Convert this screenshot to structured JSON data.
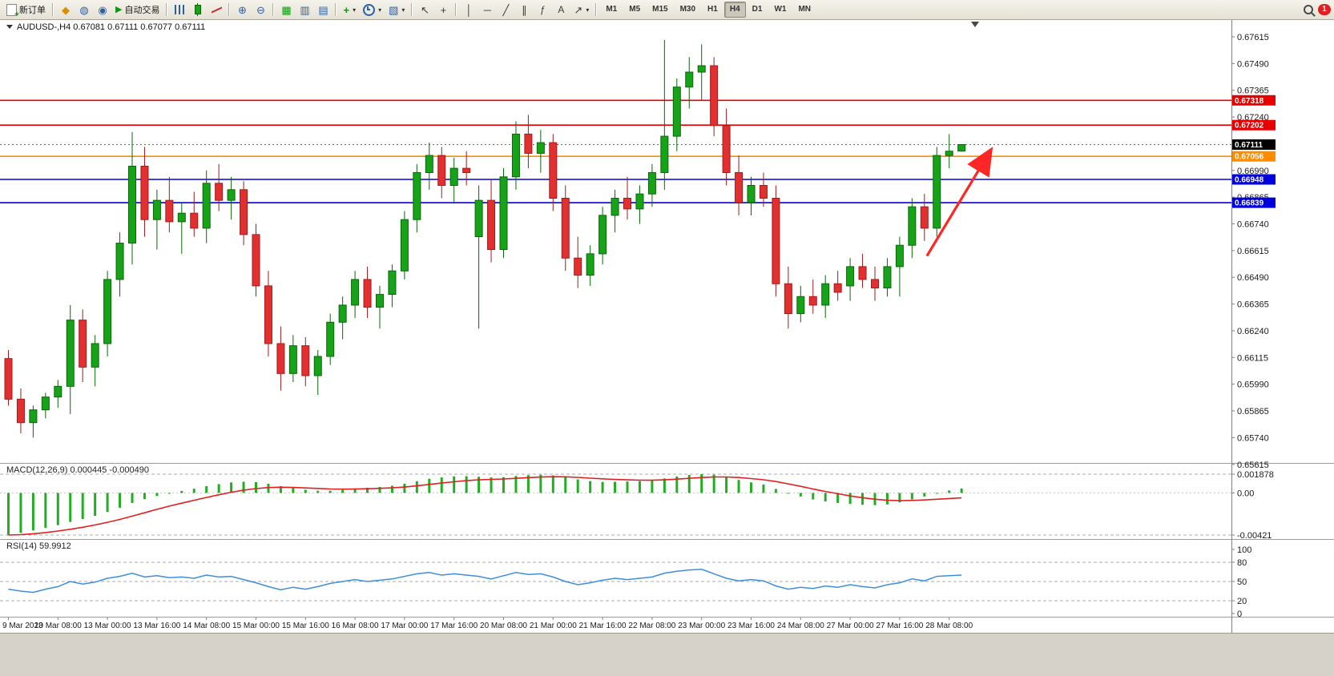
{
  "app": {
    "badge_count": "1"
  },
  "toolbar": {
    "new_order_label": "新订单",
    "auto_trading_label": "自动交易",
    "timeframes": [
      "M1",
      "M5",
      "M15",
      "M30",
      "H1",
      "H4",
      "D1",
      "W1",
      "MN"
    ],
    "active_timeframe": "H4"
  },
  "chart_header": {
    "symbol_period": "AUDUSD-,H4",
    "ohlc": "0.67081 0.67111 0.67077 0.67111"
  },
  "price_axis": {
    "labels": [
      "0.67615",
      "0.67490",
      "0.67365",
      "0.67240",
      "0.67115",
      "0.66990",
      "0.66865",
      "0.66740",
      "0.66615",
      "0.66490",
      "0.66365",
      "0.66240",
      "0.66115",
      "0.65990",
      "0.65865",
      "0.65740",
      "0.65615"
    ],
    "top_price": 0.67615,
    "step": 0.00125
  },
  "time_axis": {
    "labels": [
      "9 Mar 2023",
      "10 Mar 08:00",
      "13 Mar 00:00",
      "13 Mar 16:00",
      "14 Mar 08:00",
      "15 Mar 00:00",
      "15 Mar 16:00",
      "16 Mar 08:00",
      "17 Mar 00:00",
      "17 Mar 16:00",
      "20 Mar 08:00",
      "21 Mar 00:00",
      "21 Mar 16:00",
      "22 Mar 08:00",
      "23 Mar 00:00",
      "23 Mar 16:00",
      "24 Mar 08:00",
      "27 Mar 00:00",
      "27 Mar 16:00",
      "28 Mar 08:00"
    ],
    "candle_indices": [
      0,
      4,
      8,
      12,
      16,
      20,
      24,
      28,
      32,
      36,
      40,
      44,
      48,
      52,
      56,
      60,
      64,
      68,
      72,
      76
    ]
  },
  "levels": [
    {
      "price": 0.67318,
      "label": "0.67318",
      "color": "#E60000"
    },
    {
      "price": 0.67202,
      "label": "0.67202",
      "color": "#E60000"
    },
    {
      "price": 0.67056,
      "label": "0.67056",
      "color": "#FF8C00"
    },
    {
      "price": 0.66948,
      "label": "0.66948",
      "color": "#0000DC"
    },
    {
      "price": 0.66839,
      "label": "0.66839",
      "color": "#0000DC"
    }
  ],
  "current_price": {
    "price": 0.67111,
    "label": "0.67111",
    "tag_color": "#000000"
  },
  "chart_data": {
    "type": "candlestick",
    "symbol": "AUDUSD",
    "period": "H4",
    "colors": {
      "up": "#17A317",
      "up_border": "#0B660B",
      "down": "#E23030",
      "down_border": "#A31B1B"
    },
    "ohlc": [
      [
        0.6611,
        0.6615,
        0.6589,
        0.6592
      ],
      [
        0.6592,
        0.6597,
        0.6576,
        0.6581
      ],
      [
        0.6581,
        0.6589,
        0.6574,
        0.6587
      ],
      [
        0.6587,
        0.6595,
        0.6583,
        0.6593
      ],
      [
        0.6593,
        0.6601,
        0.6588,
        0.6598
      ],
      [
        0.6598,
        0.6636,
        0.6585,
        0.6629
      ],
      [
        0.6629,
        0.6634,
        0.66,
        0.6607
      ],
      [
        0.6607,
        0.6622,
        0.6598,
        0.6618
      ],
      [
        0.6618,
        0.6652,
        0.6612,
        0.6648
      ],
      [
        0.6648,
        0.667,
        0.664,
        0.6665
      ],
      [
        0.6665,
        0.6717,
        0.6655,
        0.6701
      ],
      [
        0.6701,
        0.671,
        0.6668,
        0.6676
      ],
      [
        0.6676,
        0.669,
        0.6662,
        0.6685
      ],
      [
        0.6685,
        0.6696,
        0.667,
        0.6675
      ],
      [
        0.6675,
        0.6684,
        0.666,
        0.6679
      ],
      [
        0.6679,
        0.6689,
        0.6668,
        0.6672
      ],
      [
        0.6672,
        0.6699,
        0.6665,
        0.6693
      ],
      [
        0.6693,
        0.6702,
        0.668,
        0.6685
      ],
      [
        0.6685,
        0.6696,
        0.6676,
        0.669
      ],
      [
        0.669,
        0.6694,
        0.6664,
        0.6669
      ],
      [
        0.6669,
        0.6674,
        0.664,
        0.6645
      ],
      [
        0.6645,
        0.6652,
        0.6612,
        0.6618
      ],
      [
        0.6618,
        0.6626,
        0.6596,
        0.6604
      ],
      [
        0.6604,
        0.6622,
        0.66,
        0.6617
      ],
      [
        0.6617,
        0.6621,
        0.6598,
        0.6603
      ],
      [
        0.6603,
        0.6615,
        0.6594,
        0.6612
      ],
      [
        0.6612,
        0.6632,
        0.6608,
        0.6628
      ],
      [
        0.6628,
        0.664,
        0.662,
        0.6636
      ],
      [
        0.6636,
        0.6652,
        0.663,
        0.6648
      ],
      [
        0.6648,
        0.6654,
        0.663,
        0.6635
      ],
      [
        0.6635,
        0.6645,
        0.6625,
        0.6641
      ],
      [
        0.6641,
        0.6655,
        0.6635,
        0.6652
      ],
      [
        0.6652,
        0.668,
        0.6648,
        0.6676
      ],
      [
        0.6676,
        0.6702,
        0.667,
        0.6698
      ],
      [
        0.6698,
        0.6712,
        0.669,
        0.6706
      ],
      [
        0.6706,
        0.671,
        0.6686,
        0.6692
      ],
      [
        0.6692,
        0.6705,
        0.6684,
        0.67
      ],
      [
        0.67,
        0.6708,
        0.6692,
        0.6698
      ],
      [
        0.6668,
        0.6692,
        0.6625,
        0.6685
      ],
      [
        0.6685,
        0.6695,
        0.6656,
        0.6662
      ],
      [
        0.6662,
        0.67,
        0.6658,
        0.6696
      ],
      [
        0.6696,
        0.6722,
        0.669,
        0.6716
      ],
      [
        0.6716,
        0.6725,
        0.67,
        0.6707
      ],
      [
        0.6707,
        0.6718,
        0.6698,
        0.6712
      ],
      [
        0.6712,
        0.6716,
        0.668,
        0.6686
      ],
      [
        0.6686,
        0.6692,
        0.6652,
        0.6658
      ],
      [
        0.6658,
        0.6668,
        0.6644,
        0.665
      ],
      [
        0.665,
        0.6664,
        0.6645,
        0.666
      ],
      [
        0.666,
        0.6682,
        0.6655,
        0.6678
      ],
      [
        0.6678,
        0.669,
        0.667,
        0.6686
      ],
      [
        0.6686,
        0.6696,
        0.6676,
        0.6681
      ],
      [
        0.6681,
        0.6692,
        0.6674,
        0.6688
      ],
      [
        0.6688,
        0.6702,
        0.6682,
        0.6698
      ],
      [
        0.6698,
        0.676,
        0.669,
        0.6715
      ],
      [
        0.6715,
        0.6742,
        0.6708,
        0.6738
      ],
      [
        0.6738,
        0.6752,
        0.6728,
        0.6745
      ],
      [
        0.6745,
        0.6758,
        0.6732,
        0.6748
      ],
      [
        0.6748,
        0.6752,
        0.6715,
        0.672
      ],
      [
        0.672,
        0.6728,
        0.6692,
        0.6698
      ],
      [
        0.6698,
        0.6706,
        0.6678,
        0.6684
      ],
      [
        0.6684,
        0.6696,
        0.6678,
        0.6692
      ],
      [
        0.6692,
        0.6698,
        0.6682,
        0.6686
      ],
      [
        0.6686,
        0.6692,
        0.664,
        0.6646
      ],
      [
        0.6646,
        0.6654,
        0.6625,
        0.6632
      ],
      [
        0.6632,
        0.6645,
        0.6628,
        0.664
      ],
      [
        0.664,
        0.6648,
        0.6632,
        0.6636
      ],
      [
        0.6636,
        0.665,
        0.663,
        0.6646
      ],
      [
        0.6646,
        0.6652,
        0.6638,
        0.6642
      ],
      [
        0.6645,
        0.6658,
        0.6638,
        0.6654
      ],
      [
        0.6654,
        0.666,
        0.6644,
        0.6648
      ],
      [
        0.6648,
        0.6654,
        0.6638,
        0.6644
      ],
      [
        0.6644,
        0.6658,
        0.664,
        0.6654
      ],
      [
        0.6654,
        0.6668,
        0.664,
        0.6664
      ],
      [
        0.6664,
        0.6686,
        0.6658,
        0.6682
      ],
      [
        0.6682,
        0.6688,
        0.6666,
        0.6672
      ],
      [
        0.6672,
        0.671,
        0.6668,
        0.6706
      ],
      [
        0.6706,
        0.6716,
        0.67,
        0.6708
      ],
      [
        0.67081,
        0.67111,
        0.67077,
        0.67111
      ]
    ],
    "indicators": {
      "macd": {
        "name": "MACD(12,26,9)",
        "value": "0.000445",
        "signal_value": "-0.000490",
        "scale_labels": [
          "0.001878",
          "0.00",
          "-0.00421"
        ],
        "max": 0.001878,
        "min": -0.00421,
        "histogram_color": "#22AD22",
        "signal_color": "#E02020",
        "histogram": [
          -0.00421,
          -0.004,
          -0.00375,
          -0.0035,
          -0.00322,
          -0.0029,
          -0.00262,
          -0.0023,
          -0.0019,
          -0.00148,
          -0.001,
          -0.00062,
          -0.0003,
          -5e-05,
          0.0002,
          0.00042,
          0.00068,
          0.00088,
          0.00105,
          0.00112,
          0.00108,
          0.00092,
          0.00068,
          0.0005,
          0.00032,
          0.00022,
          0.00022,
          0.0003,
          0.00045,
          0.00052,
          0.0006,
          0.00072,
          0.00092,
          0.00118,
          0.00142,
          0.00155,
          0.00165,
          0.00168,
          0.00162,
          0.00155,
          0.00158,
          0.0017,
          0.00178,
          0.00182,
          0.00175,
          0.00158,
          0.00135,
          0.00118,
          0.0011,
          0.00112,
          0.00115,
          0.00118,
          0.00125,
          0.00145,
          0.00165,
          0.0018,
          0.00188,
          0.00182,
          0.0016,
          0.0013,
          0.00105,
          0.00085,
          0.0004,
          0.0,
          -0.00035,
          -0.00065,
          -0.00085,
          -0.001,
          -0.0011,
          -0.00118,
          -0.00122,
          -0.00115,
          -0.00095,
          -0.00065,
          -0.00035,
          -5e-05,
          0.00025,
          0.000445
        ],
        "signal": [
          -0.00421,
          -0.00417,
          -0.00408,
          -0.00396,
          -0.00381,
          -0.00363,
          -0.00343,
          -0.0032,
          -0.00294,
          -0.00265,
          -0.00232,
          -0.00198,
          -0.00164,
          -0.00132,
          -0.00102,
          -0.00073,
          -0.00045,
          -0.00018,
          7e-05,
          0.00028,
          0.00044,
          0.00054,
          0.00057,
          0.00055,
          0.0005,
          0.00045,
          0.0004,
          0.00038,
          0.00039,
          0.00042,
          0.00046,
          0.00051,
          0.00059,
          0.00071,
          0.00085,
          0.00099,
          0.00112,
          0.00123,
          0.00131,
          0.00136,
          0.0014,
          0.00146,
          0.00153,
          0.00159,
          0.00162,
          0.00161,
          0.00156,
          0.00148,
          0.00141,
          0.00135,
          0.00131,
          0.00128,
          0.00127,
          0.00131,
          0.00138,
          0.00146,
          0.00154,
          0.0016,
          0.0016,
          0.00154,
          0.00144,
          0.00132,
          0.00114,
          0.00091,
          0.00066,
          0.0004,
          0.00015,
          -8e-05,
          -0.0003,
          -0.00048,
          -0.00063,
          -0.00073,
          -0.00077,
          -0.00075,
          -0.0007,
          -0.00063,
          -0.00056,
          -0.00049
        ]
      },
      "rsi": {
        "name": "RSI(14)",
        "value": "59.9912",
        "scale_labels": [
          "100",
          "80",
          "50",
          "20",
          "0"
        ],
        "levels": [
          80,
          50,
          20
        ],
        "color": "#3E8EDE",
        "values": [
          38,
          35,
          33,
          38,
          42,
          50,
          46,
          49,
          55,
          58,
          63,
          57,
          59,
          56,
          57,
          55,
          60,
          57,
          58,
          53,
          48,
          42,
          37,
          41,
          38,
          42,
          47,
          50,
          53,
          50,
          52,
          54,
          58,
          62,
          64,
          60,
          62,
          60,
          58,
          54,
          59,
          64,
          61,
          62,
          57,
          50,
          45,
          48,
          52,
          55,
          53,
          55,
          57,
          63,
          66,
          68,
          69,
          62,
          55,
          51,
          53,
          51,
          43,
          38,
          41,
          39,
          43,
          41,
          45,
          42,
          40,
          45,
          48,
          54,
          51,
          58,
          59,
          59.99
        ]
      }
    },
    "objects": {
      "trend_arrow": {
        "from": {
          "index": 74.2,
          "price": 0.6659
        },
        "to": {
          "index": 79.2,
          "price": 0.6707
        },
        "color": "#FF2626"
      }
    }
  }
}
